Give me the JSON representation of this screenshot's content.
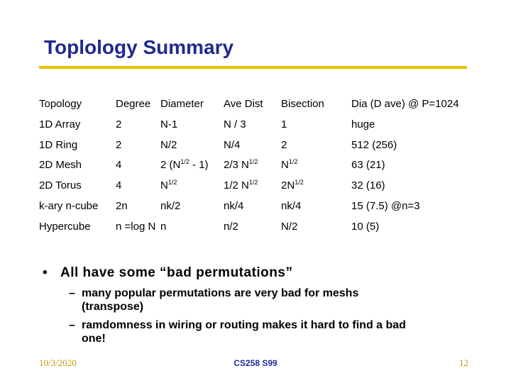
{
  "header": {
    "title": "Toplology Summary"
  },
  "table": {
    "columns": [
      "Topology",
      "Degree",
      "Diameter",
      "Ave Dist",
      "Bisection",
      "Dia (D ave) @ P=1024"
    ],
    "rows": [
      [
        [
          "1D Array"
        ],
        [
          "2"
        ],
        [
          "N-1"
        ],
        [
          "N / 3"
        ],
        [
          "1"
        ],
        [
          "huge"
        ]
      ],
      [
        [
          "1D Ring"
        ],
        [
          "2"
        ],
        [
          "N/2"
        ],
        [
          "N/4"
        ],
        [
          "2"
        ],
        [
          "512 (256)"
        ]
      ],
      [
        [
          "2D Mesh"
        ],
        [
          "4"
        ],
        [
          "2 (N",
          "1/2",
          " - 1)"
        ],
        [
          "2/3 N",
          "1/2"
        ],
        [
          "N",
          "1/2"
        ],
        [
          "63 (21)"
        ]
      ],
      [
        [
          "2D Torus"
        ],
        [
          "4"
        ],
        [
          "N",
          "1/2"
        ],
        [
          "1/2 N",
          "1/2"
        ],
        [
          "2N",
          "1/2"
        ],
        [
          "32 (16)"
        ]
      ],
      [
        [
          "k-ary n-cube"
        ],
        [
          "2n"
        ],
        [
          "nk/2"
        ],
        [
          "nk/4"
        ],
        [
          "nk/4"
        ],
        [
          "15 (7.5)  @n=3"
        ]
      ],
      [
        [
          "Hypercube"
        ],
        [
          "n =log N"
        ],
        [
          "n"
        ],
        [
          "n/2"
        ],
        [
          "N/2"
        ],
        [
          "10 (5)"
        ]
      ]
    ]
  },
  "bullets": [
    {
      "text": "All have some “bad permutations”",
      "sub": [
        [
          "many popular permutations are very bad for meshs",
          "(transpose)"
        ],
        [
          "ramdomness in wiring or routing makes it hard to find a bad",
          "one!"
        ]
      ]
    }
  ],
  "footer": {
    "date": "10/3/2020",
    "course": "CS258 S99",
    "page": "12"
  }
}
